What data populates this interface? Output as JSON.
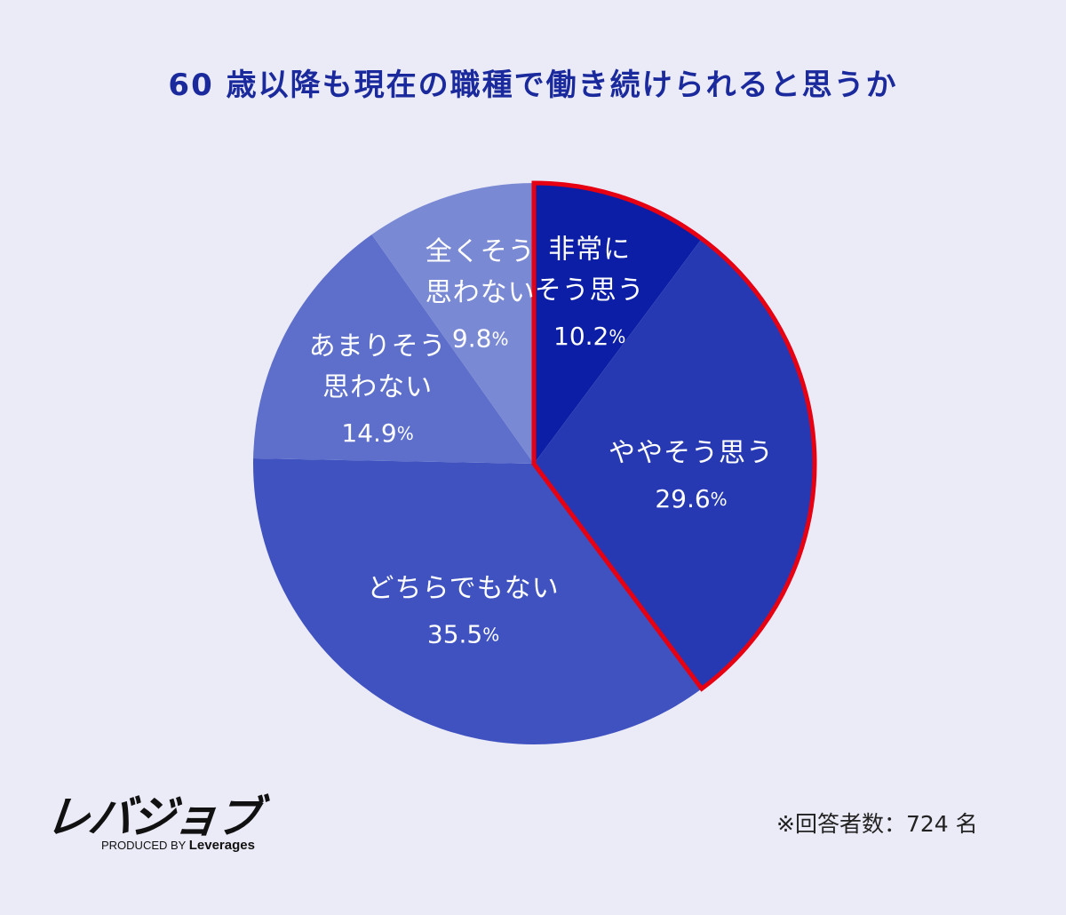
{
  "chart_data": {
    "type": "pie",
    "title": "60 歳以降も現在の職種で働き続けられると思うか",
    "unit": "%",
    "slices": [
      {
        "label_lines": [
          "非常に",
          "そう思う"
        ],
        "value": 10.2,
        "value_text": "10.2",
        "color": "#0c1ea5",
        "highlight": true
      },
      {
        "label_lines": [
          "ややそう思う"
        ],
        "value": 29.6,
        "value_text": "29.6",
        "color": "#2639b3",
        "highlight": true
      },
      {
        "label_lines": [
          "どちらでもない"
        ],
        "value": 35.5,
        "value_text": "35.5",
        "color": "#3f52c0",
        "highlight": false
      },
      {
        "label_lines": [
          "あまりそう",
          "思わない"
        ],
        "value": 14.9,
        "value_text": "14.9",
        "color": "#5d6fcb",
        "highlight": false
      },
      {
        "label_lines": [
          "全くそう",
          "思わない"
        ],
        "value": 9.8,
        "value_text": "9.8",
        "color": "#7a89d4",
        "highlight": false
      }
    ],
    "highlight_color": "#e60012",
    "start": "top, clockwise",
    "legend": "none (labels inside slices)"
  },
  "logo": {
    "main": "レバジョブ",
    "sub_prefix": "PRODUCED BY ",
    "sub_brand": "Leverages"
  },
  "note": "※回答者数：724 名",
  "colors": {
    "background": "#ebebf7",
    "title": "#1a2a9c"
  }
}
